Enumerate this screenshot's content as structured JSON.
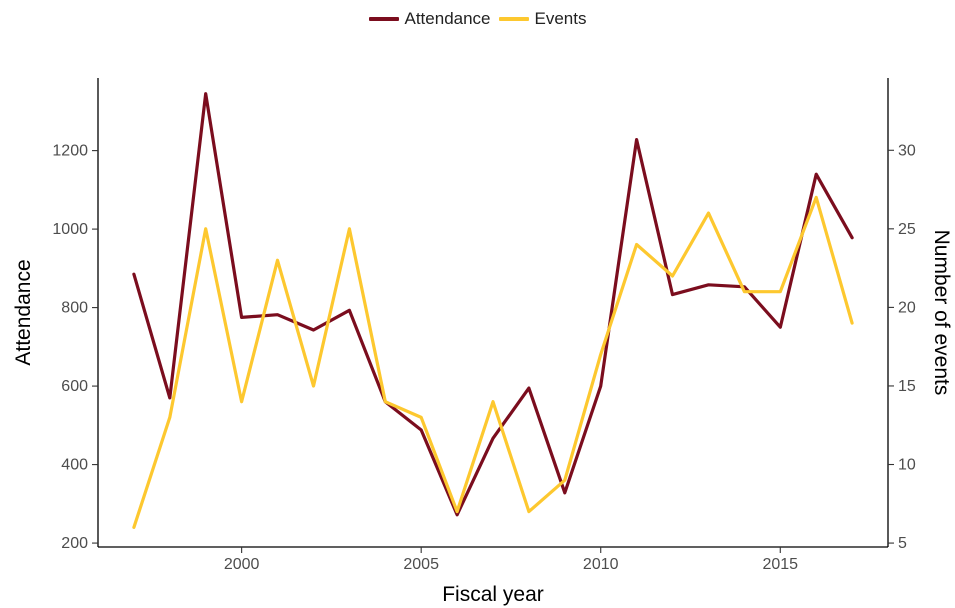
{
  "chart_data": {
    "type": "line",
    "xlabel": "Fiscal year",
    "ylabel_left": "Attendance",
    "ylabel_right": "Number of events",
    "x": [
      1997,
      1998,
      1999,
      2000,
      2001,
      2002,
      2003,
      2004,
      2005,
      2006,
      2007,
      2008,
      2009,
      2010,
      2011,
      2012,
      2013,
      2014,
      2015,
      2016,
      2017
    ],
    "xlim": [
      1996,
      2018
    ],
    "xticks": [
      "2000",
      "2005",
      "2010",
      "2015"
    ],
    "ylim_left": [
      190,
      1385
    ],
    "yticks_left": [
      "200",
      "400",
      "600",
      "800",
      "1000",
      "1200"
    ],
    "ylim_right": [
      4.75,
      34.6
    ],
    "yticks_right": [
      "5",
      "10",
      "15",
      "20",
      "25",
      "30"
    ],
    "grid": false,
    "legend_position": "top-center",
    "series": [
      {
        "name": "Attendance",
        "axis": "left",
        "color": "#7b0d1e",
        "values": [
          885,
          570,
          1345,
          775,
          782,
          743,
          793,
          560,
          488,
          272,
          467,
          595,
          328,
          600,
          1228,
          833,
          858,
          853,
          750,
          1140,
          978
        ]
      },
      {
        "name": "Events",
        "axis": "right",
        "color": "#fdc82f",
        "values": [
          6,
          13,
          25,
          14,
          23,
          15,
          25,
          14,
          13,
          7,
          14,
          7,
          9,
          17,
          24,
          22,
          26,
          21,
          21,
          27,
          19
        ]
      }
    ]
  }
}
